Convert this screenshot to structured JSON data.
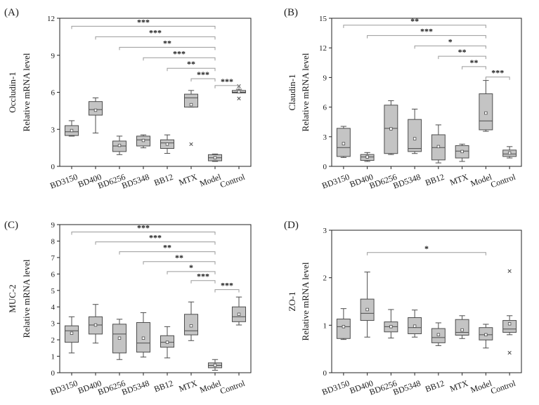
{
  "colors": {
    "box_fill": "#c4c4c4",
    "line": "#4d4d4d",
    "axis": "#222222",
    "bracket": "#9a9a9a"
  },
  "charts": [
    {
      "panel": "(A)",
      "ylabel": [
        "Occludin-1",
        "Relative mRNA level"
      ],
      "categories": [
        "BD3150",
        "BD400",
        "BD6256",
        "BD5348",
        "BB12",
        "MTX",
        "Model",
        "Control"
      ],
      "ylim": [
        0,
        12
      ],
      "yticks": [
        "0",
        "3",
        "6",
        "9",
        "12"
      ],
      "boxes": [
        {
          "q1": 2.5,
          "median": 2.8,
          "q3": 3.3,
          "whisker_low": 2.45,
          "whisker_high": 3.7,
          "mean": 2.9,
          "outliers": []
        },
        {
          "q1": 4.15,
          "median": 4.6,
          "q3": 5.25,
          "whisker_low": 2.7,
          "whisker_high": 5.55,
          "mean": 4.55,
          "outliers": []
        },
        {
          "q1": 1.2,
          "median": 1.65,
          "q3": 2.05,
          "whisker_low": 0.95,
          "whisker_high": 2.45,
          "mean": 1.7,
          "outliers": []
        },
        {
          "q1": 1.65,
          "median": 2.15,
          "q3": 2.45,
          "whisker_low": 1.5,
          "whisker_high": 2.55,
          "mean": 2.1,
          "outliers": []
        },
        {
          "q1": 1.45,
          "median": 1.9,
          "q3": 2.15,
          "whisker_low": 1.05,
          "whisker_high": 2.55,
          "mean": 1.8,
          "outliers": []
        },
        {
          "q1": 4.8,
          "median": 5.55,
          "q3": 5.85,
          "whisker_low": 4.8,
          "whisker_high": 6.15,
          "mean": 5.0,
          "outliers": [
            1.8
          ]
        },
        {
          "q1": 0.45,
          "median": 0.7,
          "q3": 0.95,
          "whisker_low": 0.4,
          "whisker_high": 1.0,
          "mean": 0.7,
          "outliers": []
        },
        {
          "q1": 5.95,
          "median": 6.0,
          "q3": 6.15,
          "whisker_low": 5.95,
          "whisker_high": 6.25,
          "mean": 6.05,
          "outliers": [
            5.5,
            6.5
          ]
        }
      ],
      "brackets": [
        {
          "from": 0,
          "to": 6,
          "level": 11.35,
          "label": "***"
        },
        {
          "from": 1,
          "to": 6,
          "level": 10.5,
          "label": "***"
        },
        {
          "from": 2,
          "to": 6,
          "level": 9.65,
          "label": "**"
        },
        {
          "from": 3,
          "to": 6,
          "level": 8.8,
          "label": "***"
        },
        {
          "from": 4,
          "to": 6,
          "level": 7.95,
          "label": "**"
        },
        {
          "from": 5,
          "to": 6,
          "level": 7.1,
          "label": "***"
        },
        {
          "from": 6,
          "to": 7,
          "level": 6.55,
          "label": "***"
        }
      ]
    },
    {
      "panel": "(B)",
      "ylabel": [
        "Claudin-1",
        "Relative mRNA level"
      ],
      "categories": [
        "BD3150",
        "BD400",
        "BD6256",
        "BD5348",
        "BB12",
        "MTX",
        "Model",
        "Control"
      ],
      "ylim": [
        0,
        15
      ],
      "yticks": [
        "0",
        "3",
        "6",
        "9",
        "12",
        "15"
      ],
      "boxes": [
        {
          "q1": 1.0,
          "median": 1.9,
          "q3": 3.85,
          "whisker_low": 0.9,
          "whisker_high": 4.05,
          "mean": 2.3,
          "outliers": []
        },
        {
          "q1": 0.6,
          "median": 0.95,
          "q3": 1.2,
          "whisker_low": 0.5,
          "whisker_high": 1.4,
          "mean": 0.95,
          "outliers": []
        },
        {
          "q1": 1.3,
          "median": 3.85,
          "q3": 6.2,
          "whisker_low": 1.2,
          "whisker_high": 6.65,
          "mean": 3.8,
          "outliers": []
        },
        {
          "q1": 1.5,
          "median": 1.8,
          "q3": 4.75,
          "whisker_low": 1.3,
          "whisker_high": 5.8,
          "mean": 2.8,
          "outliers": []
        },
        {
          "q1": 0.65,
          "median": 1.9,
          "q3": 3.2,
          "whisker_low": 0.35,
          "whisker_high": 4.2,
          "mean": 2.0,
          "outliers": []
        },
        {
          "q1": 0.85,
          "median": 1.55,
          "q3": 2.1,
          "whisker_low": 0.5,
          "whisker_high": 2.25,
          "mean": 1.5,
          "outliers": []
        },
        {
          "q1": 3.7,
          "median": 4.6,
          "q3": 7.35,
          "whisker_low": 3.55,
          "whisker_high": 8.7,
          "mean": 5.4,
          "outliers": []
        },
        {
          "q1": 1.0,
          "median": 1.25,
          "q3": 1.65,
          "whisker_low": 0.85,
          "whisker_high": 2.0,
          "mean": 1.35,
          "outliers": []
        }
      ],
      "brackets": [
        {
          "from": 0,
          "to": 6,
          "level": 14.3,
          "label": "**"
        },
        {
          "from": 1,
          "to": 6,
          "level": 13.25,
          "label": "***"
        },
        {
          "from": 3,
          "to": 6,
          "level": 12.2,
          "label": "*"
        },
        {
          "from": 4,
          "to": 6,
          "level": 11.15,
          "label": "**"
        },
        {
          "from": 5,
          "to": 6,
          "level": 10.1,
          "label": "**"
        },
        {
          "from": 6,
          "to": 7,
          "level": 9.05,
          "label": "***"
        }
      ]
    },
    {
      "panel": "(C)",
      "ylabel": [
        "MUC-2",
        "Relative mRNA level"
      ],
      "categories": [
        "BD3150",
        "BD400",
        "BD6256",
        "BD5348",
        "BB12",
        "MTX",
        "Model",
        "Control"
      ],
      "ylim": [
        0,
        9
      ],
      "yticks": [
        "0",
        "1",
        "2",
        "3",
        "4",
        "5",
        "6",
        "7",
        "8",
        "9"
      ],
      "boxes": [
        {
          "q1": 1.85,
          "median": 2.55,
          "q3": 2.85,
          "whisker_low": 1.2,
          "whisker_high": 3.4,
          "mean": 2.4,
          "outliers": []
        },
        {
          "q1": 2.35,
          "median": 2.9,
          "q3": 3.4,
          "whisker_low": 1.8,
          "whisker_high": 4.15,
          "mean": 2.9,
          "outliers": []
        },
        {
          "q1": 1.2,
          "median": 2.35,
          "q3": 2.95,
          "whisker_low": 0.8,
          "whisker_high": 3.25,
          "mean": 2.1,
          "outliers": []
        },
        {
          "q1": 1.25,
          "median": 1.8,
          "q3": 3.05,
          "whisker_low": 0.95,
          "whisker_high": 3.65,
          "mean": 2.1,
          "outliers": []
        },
        {
          "q1": 1.55,
          "median": 1.85,
          "q3": 2.25,
          "whisker_low": 0.9,
          "whisker_high": 2.8,
          "mean": 1.85,
          "outliers": []
        },
        {
          "q1": 2.3,
          "median": 2.55,
          "q3": 3.55,
          "whisker_low": 1.95,
          "whisker_high": 4.3,
          "mean": 2.85,
          "outliers": []
        },
        {
          "q1": 0.3,
          "median": 0.45,
          "q3": 0.6,
          "whisker_low": 0.15,
          "whisker_high": 0.8,
          "mean": 0.45,
          "outliers": []
        },
        {
          "q1": 3.1,
          "median": 3.4,
          "q3": 4.0,
          "whisker_low": 2.9,
          "whisker_high": 4.6,
          "mean": 3.55,
          "outliers": []
        }
      ],
      "brackets": [
        {
          "from": 0,
          "to": 6,
          "level": 8.55,
          "label": "***"
        },
        {
          "from": 1,
          "to": 6,
          "level": 7.95,
          "label": "***"
        },
        {
          "from": 2,
          "to": 6,
          "level": 7.35,
          "label": "**"
        },
        {
          "from": 3,
          "to": 6,
          "level": 6.75,
          "label": "**"
        },
        {
          "from": 4,
          "to": 6,
          "level": 6.15,
          "label": "*"
        },
        {
          "from": 5,
          "to": 6,
          "level": 5.6,
          "label": "***"
        },
        {
          "from": 6,
          "to": 7,
          "level": 5.05,
          "label": "***"
        }
      ]
    },
    {
      "panel": "(D)",
      "ylabel": [
        "ZO-1",
        "Relative mRNA level"
      ],
      "categories": [
        "BD3150",
        "BD400",
        "BD6256",
        "BD5348",
        "BB12",
        "MTX",
        "Model",
        "Control"
      ],
      "ylim": [
        0,
        3
      ],
      "yticks": [
        "0",
        "1",
        "2",
        "3"
      ],
      "boxes": [
        {
          "q1": 0.72,
          "median": 0.97,
          "q3": 1.13,
          "whisker_low": 0.7,
          "whisker_high": 1.35,
          "mean": 0.97,
          "outliers": []
        },
        {
          "q1": 1.1,
          "median": 1.25,
          "q3": 1.55,
          "whisker_low": 0.75,
          "whisker_high": 2.12,
          "mean": 1.33,
          "outliers": []
        },
        {
          "q1": 0.86,
          "median": 0.97,
          "q3": 1.07,
          "whisker_low": 0.73,
          "whisker_high": 1.33,
          "mean": 0.97,
          "outliers": []
        },
        {
          "q1": 0.82,
          "median": 0.95,
          "q3": 1.16,
          "whisker_low": 0.75,
          "whisker_high": 1.32,
          "mean": 0.98,
          "outliers": []
        },
        {
          "q1": 0.63,
          "median": 0.74,
          "q3": 0.93,
          "whisker_low": 0.57,
          "whisker_high": 1.05,
          "mean": 0.8,
          "outliers": []
        },
        {
          "q1": 0.79,
          "median": 0.85,
          "q3": 1.12,
          "whisker_low": 0.72,
          "whisker_high": 1.2,
          "mean": 0.9,
          "outliers": []
        },
        {
          "q1": 0.69,
          "median": 0.8,
          "q3": 0.95,
          "whisker_low": 0.52,
          "whisker_high": 1.02,
          "mean": 0.8,
          "outliers": []
        },
        {
          "q1": 0.85,
          "median": 0.92,
          "q3": 1.1,
          "whisker_low": 0.8,
          "whisker_high": 1.2,
          "mean": 1.03,
          "outliers": [
            2.14,
            0.42
          ]
        }
      ],
      "brackets": [
        {
          "from": 1,
          "to": 6,
          "level": 2.53,
          "label": "*"
        }
      ]
    }
  ]
}
